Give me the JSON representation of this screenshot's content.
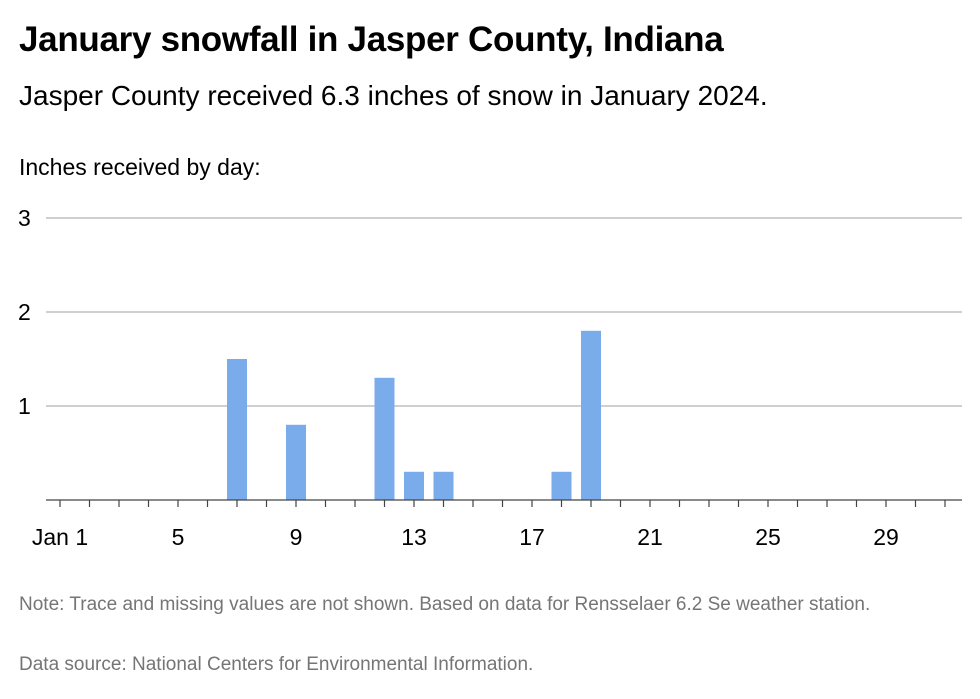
{
  "header": {
    "title": "January snowfall in Jasper County, Indiana",
    "subtitle": "Jasper County received 6.3 inches of snow in January 2024.",
    "axis_caption": "Inches received by day:"
  },
  "footer": {
    "note": "Note: Trace and missing values are not shown. Based on data for Rensselaer 6.2 Se weather station.",
    "source": "Data source: National Centers for Environmental Information."
  },
  "colors": {
    "bar": "#7aabea",
    "grid": "#b3b3b3",
    "axis": "#444444"
  },
  "chart_data": {
    "type": "bar",
    "title": "January snowfall in Jasper County, Indiana",
    "ylabel": "Inches received by day:",
    "ylim": [
      0,
      3
    ],
    "yticks": [
      1,
      2,
      3
    ],
    "xlim": [
      1,
      31
    ],
    "xticks": [
      {
        "day": 1,
        "label": "Jan 1"
      },
      {
        "day": 5,
        "label": "5"
      },
      {
        "day": 9,
        "label": "9"
      },
      {
        "day": 13,
        "label": "13"
      },
      {
        "day": 17,
        "label": "17"
      },
      {
        "day": 21,
        "label": "21"
      },
      {
        "day": 25,
        "label": "25"
      },
      {
        "day": 29,
        "label": "29"
      }
    ],
    "bars": [
      {
        "day": 7,
        "value": 1.5
      },
      {
        "day": 9,
        "value": 0.8
      },
      {
        "day": 12,
        "value": 1.3
      },
      {
        "day": 13,
        "value": 0.3
      },
      {
        "day": 14,
        "value": 0.3
      },
      {
        "day": 18,
        "value": 0.3
      },
      {
        "day": 19,
        "value": 1.8
      }
    ],
    "grid": true
  }
}
